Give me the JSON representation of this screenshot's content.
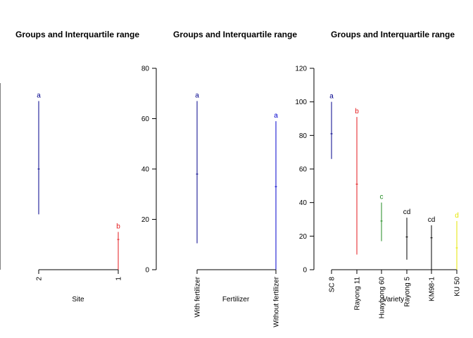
{
  "chart_data": [
    {
      "type": "interval",
      "title": "Groups and Interquartile range",
      "xlabel": "Site",
      "categories": [
        "2",
        "1"
      ],
      "ylim": [
        0,
        80
      ],
      "y_ticks_visible": false,
      "groups": [
        {
          "category": "2",
          "low": 22,
          "mid": 40,
          "high": 67,
          "letter": "a",
          "color": "#00008b"
        },
        {
          "category": "1",
          "low": 0,
          "mid": 12,
          "high": 15,
          "letter": "b",
          "color": "#e41a1c"
        }
      ]
    },
    {
      "type": "interval",
      "title": "Groups and Interquartile range",
      "xlabel": "Fertilizer",
      "categories": [
        "With fertilizer",
        "Without fertilizer"
      ],
      "ylim": [
        0,
        80
      ],
      "yticks": [
        0,
        20,
        40,
        60,
        80
      ],
      "groups": [
        {
          "category": "With fertilizer",
          "low": 10.5,
          "mid": 38,
          "high": 67,
          "letter": "a",
          "color": "#00008b"
        },
        {
          "category": "Without fertilizer",
          "low": 0,
          "mid": 33,
          "high": 59,
          "letter": "a",
          "color": "#0000cd"
        }
      ]
    },
    {
      "type": "interval",
      "title": "Groups and Interquartile range",
      "xlabel": "Variety",
      "categories": [
        "SC 8",
        "Rayong 11",
        "Huaybong 60",
        "Rayong 5",
        "KM98-1",
        "KU 50"
      ],
      "ylim": [
        0,
        120
      ],
      "yticks": [
        0,
        20,
        40,
        60,
        80,
        100,
        120
      ],
      "groups": [
        {
          "category": "SC 8",
          "low": 66,
          "mid": 81,
          "high": 100,
          "letter": "a",
          "color": "#00008b"
        },
        {
          "category": "Rayong 11",
          "low": 9,
          "mid": 51,
          "high": 91,
          "letter": "b",
          "color": "#e41a1c"
        },
        {
          "category": "Huaybong 60",
          "low": 17,
          "mid": 29,
          "high": 40,
          "letter": "c",
          "color": "#228b22"
        },
        {
          "category": "Rayong 5",
          "low": 6,
          "mid": 19.5,
          "high": 31,
          "letter": "cd",
          "color": "#000000"
        },
        {
          "category": "KM98-1",
          "low": 0,
          "mid": 19,
          "high": 26.5,
          "letter": "cd",
          "color": "#000000"
        },
        {
          "category": "KU 50",
          "low": 0,
          "mid": 13,
          "high": 29,
          "letter": "d",
          "color": "#e6e600"
        }
      ]
    }
  ]
}
